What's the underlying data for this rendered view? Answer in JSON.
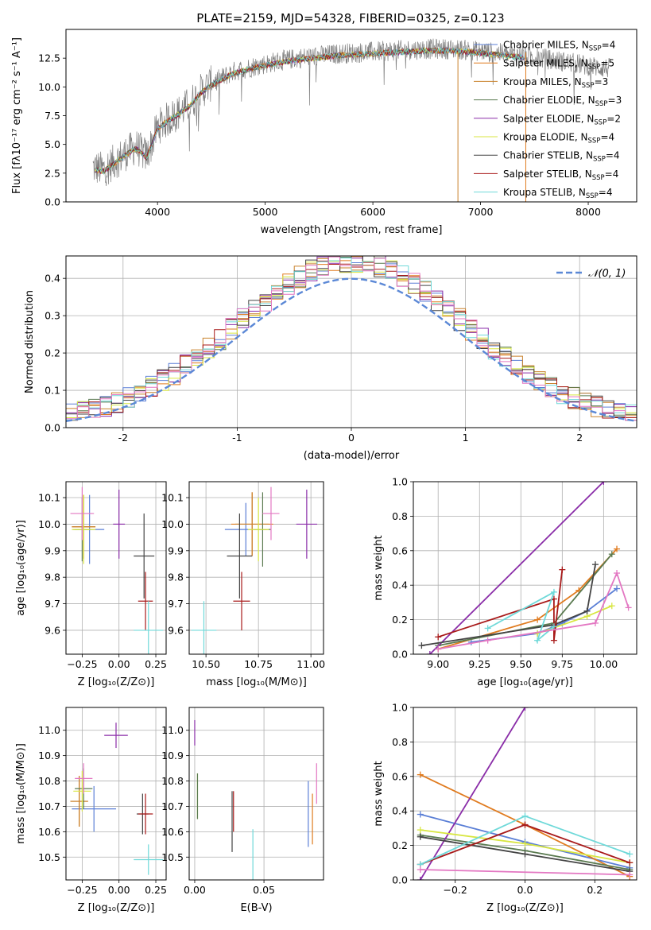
{
  "figure": {
    "title": "PLATE=2159, MJD=54328, FIBERID=0325, z=0.123"
  },
  "colors": {
    "Chabrier MILES": "#5b7fd6",
    "Salpeter MILES": "#e07b1f",
    "Kroupa MILES": "#c9822d",
    "Chabrier ELODIE": "#5a7a50",
    "Salpeter ELODIE": "#8a2da8",
    "Kroupa ELODIE": "#d8e640",
    "Chabrier STELIB": "#444444",
    "Salpeter STELIB": "#a81a1a",
    "Kroupa STELIB": "#6fd9d9",
    "spectrum": "#808080",
    "gaussian": "#5b88d6",
    "pink": "#e377c2"
  },
  "chart_data": [
    {
      "id": "spectrum",
      "type": "line",
      "title": "PLATE=2159, MJD=54328, FIBERID=0325, z=0.123",
      "xlabel": "wavelength [Angstrom, rest frame]",
      "ylabel": "Flux [fλ10⁻¹⁷ erg cm⁻² s⁻¹ A⁻¹]",
      "xlim": [
        3150,
        8450
      ],
      "ylim": [
        0,
        15
      ],
      "xticks": [
        4000,
        5000,
        6000,
        7000,
        8000
      ],
      "yticks": [
        0.0,
        2.5,
        5.0,
        7.5,
        10.0,
        12.5
      ],
      "legend_position": "top-right",
      "legend": [
        {
          "label": "Chabrier MILES, N",
          "sub": "SSP",
          "suffix": "=4",
          "color": "#5b7fd6"
        },
        {
          "label": "Salpeter MILES, N",
          "sub": "SSP",
          "suffix": "=5",
          "color": "#e07b1f"
        },
        {
          "label": "Kroupa MILES, N",
          "sub": "SSP",
          "suffix": "=3",
          "color": "#c9822d"
        },
        {
          "label": "Chabrier ELODIE, N",
          "sub": "SSP",
          "suffix": "=3",
          "color": "#5a7a50"
        },
        {
          "label": "Salpeter ELODIE, N",
          "sub": "SSP",
          "suffix": "=2",
          "color": "#8a2da8"
        },
        {
          "label": "Kroupa ELODIE, N",
          "sub": "SSP",
          "suffix": "=4",
          "color": "#d8e640"
        },
        {
          "label": "Chabrier STELIB, N",
          "sub": "SSP",
          "suffix": "=4",
          "color": "#444444"
        },
        {
          "label": "Salpeter STELIB, N",
          "sub": "SSP",
          "suffix": "=4",
          "color": "#a81a1a"
        },
        {
          "label": "Kroupa STELIB, N",
          "sub": "SSP",
          "suffix": "=4",
          "color": "#6fd9d9"
        }
      ],
      "spectrum_envelope": {
        "x": [
          3400,
          3500,
          3600,
          3700,
          3800,
          3900,
          3950,
          4000,
          4100,
          4200,
          4300,
          4400,
          4500,
          4700,
          4900,
          5100,
          5300,
          5500,
          5700,
          5900,
          6100,
          6300,
          6500,
          6700,
          6900,
          7100,
          7300,
          7500,
          7700,
          7900,
          8100,
          8200
        ],
        "y": [
          3.0,
          2.8,
          3.5,
          4.2,
          4.8,
          4.0,
          5.2,
          6.5,
          7.2,
          7.8,
          8.5,
          9.6,
          10.3,
          11.3,
          11.8,
          12.2,
          12.5,
          12.7,
          12.9,
          13.0,
          13.1,
          13.2,
          13.3,
          13.3,
          13.2,
          13.0,
          12.8,
          12.6,
          12.3,
          12.0,
          11.7,
          11.6
        ]
      }
    },
    {
      "id": "residual-hist",
      "type": "bar",
      "xlabel": "(data-model)/error",
      "ylabel": "Normed distribution",
      "xlim": [
        -2.5,
        2.5
      ],
      "ylim": [
        0,
        0.46
      ],
      "xticks": [
        -2,
        -1,
        0,
        1,
        2
      ],
      "yticks": [
        0.0,
        0.1,
        0.2,
        0.3,
        0.4
      ],
      "grid": true,
      "legend_position": "top-right",
      "gaussian_label": "𝒩(0, 1)",
      "bin_width": 0.1,
      "bin_start": -2.5
    },
    {
      "id": "age-Z",
      "type": "scatter",
      "xlabel": "Z [log₁₀(Z/Z⊙)]",
      "ylabel": "age  [log₁₀(age/yr)]",
      "xlim": [
        -0.36,
        0.32
      ],
      "ylim": [
        9.51,
        10.16
      ],
      "xticks": [
        -0.25,
        0.0,
        0.25
      ],
      "xticklabels": [
        "−0.25",
        "0.00",
        "0.25"
      ],
      "yticks": [
        9.6,
        9.7,
        9.8,
        9.9,
        10.0,
        10.1
      ],
      "grid": true,
      "points": [
        {
          "x": -0.2,
          "xerr": 0.1,
          "y": 9.98,
          "yerr": 0.13,
          "color": "#5b7fd6"
        },
        {
          "x": -0.24,
          "xerr": 0.08,
          "y": 9.99,
          "yerr": 0.12,
          "color": "#e07b1f"
        },
        {
          "x": -0.24,
          "xerr": 0.08,
          "y": 9.99,
          "yerr": 0.12,
          "color": "#c9822d"
        },
        {
          "x": -0.25,
          "xerr": 0.06,
          "y": 9.98,
          "yerr": 0.12,
          "color": "#5a7a50"
        },
        {
          "x": 0.0,
          "xerr": 0.04,
          "y": 10.0,
          "yerr": 0.13,
          "color": "#8a2da8"
        },
        {
          "x": -0.24,
          "xerr": 0.08,
          "y": 9.98,
          "yerr": 0.13,
          "color": "#d8e640"
        },
        {
          "x": 0.17,
          "xerr": 0.07,
          "y": 9.88,
          "yerr": 0.16,
          "color": "#444444"
        },
        {
          "x": 0.18,
          "xerr": 0.05,
          "y": 9.71,
          "yerr": 0.11,
          "color": "#a81a1a"
        },
        {
          "x": 0.2,
          "xerr": 0.1,
          "y": 9.6,
          "yerr": 0.11,
          "color": "#6fd9d9"
        },
        {
          "x": -0.25,
          "xerr": 0.08,
          "y": 10.04,
          "yerr": 0.1,
          "color": "#e377c2"
        }
      ]
    },
    {
      "id": "age-mass",
      "type": "scatter",
      "xlabel": "mass [log₁₀(M/M⊙)]",
      "ylabel": "",
      "xlim": [
        10.42,
        11.06
      ],
      "ylim": [
        9.51,
        10.16
      ],
      "xticks": [
        10.5,
        10.75,
        11.0
      ],
      "xticklabels": [
        "10.50",
        "10.75",
        "11.00"
      ],
      "yticks": [
        9.6,
        9.7,
        9.8,
        9.9,
        10.0,
        10.1
      ],
      "grid": true,
      "points": [
        {
          "x": 10.69,
          "xerr": 0.1,
          "y": 9.98,
          "yerr": 0.1,
          "color": "#5b7fd6"
        },
        {
          "x": 10.72,
          "xerr": 0.1,
          "y": 10.0,
          "yerr": 0.12,
          "color": "#e07b1f"
        },
        {
          "x": 10.72,
          "xerr": 0.08,
          "y": 10.0,
          "yerr": 0.12,
          "color": "#c9822d"
        },
        {
          "x": 10.77,
          "xerr": 0.04,
          "y": 9.98,
          "yerr": 0.14,
          "color": "#5a7a50"
        },
        {
          "x": 10.98,
          "xerr": 0.05,
          "y": 10.0,
          "yerr": 0.13,
          "color": "#8a2da8"
        },
        {
          "x": 10.75,
          "xerr": 0.05,
          "y": 9.98,
          "yerr": 0.12,
          "color": "#d8e640"
        },
        {
          "x": 10.66,
          "xerr": 0.06,
          "y": 9.88,
          "yerr": 0.16,
          "color": "#444444"
        },
        {
          "x": 10.67,
          "xerr": 0.04,
          "y": 9.71,
          "yerr": 0.11,
          "color": "#a81a1a"
        },
        {
          "x": 10.49,
          "xerr": 0.06,
          "y": 9.6,
          "yerr": 0.11,
          "color": "#6fd9d9"
        },
        {
          "x": 10.81,
          "xerr": 0.04,
          "y": 10.04,
          "yerr": 0.1,
          "color": "#e377c2"
        }
      ]
    },
    {
      "id": "massweight-age",
      "type": "line",
      "xlabel": "age  [log₁₀(age/yr)]",
      "ylabel": "mass weight",
      "xlim": [
        8.85,
        10.2
      ],
      "ylim": [
        0,
        1
      ],
      "xticks": [
        9.0,
        9.25,
        9.5,
        9.75,
        10.0
      ],
      "xticklabels": [
        "9.00",
        "9.25",
        "9.50",
        "9.75",
        "10.00"
      ],
      "yticks": [
        0.0,
        0.2,
        0.4,
        0.6,
        0.8,
        1.0
      ],
      "grid": true,
      "series": [
        {
          "color": "#5b7fd6",
          "x": [
            9.2,
            9.6,
            9.75,
            9.9,
            10.08
          ],
          "y": [
            0.07,
            0.12,
            0.18,
            0.25,
            0.38
          ]
        },
        {
          "color": "#e07b1f",
          "x": [
            9.0,
            9.6,
            9.85,
            10.08
          ],
          "y": [
            0.03,
            0.2,
            0.37,
            0.61
          ]
        },
        {
          "color": "#5a7a50",
          "x": [
            9.0,
            9.7,
            10.05
          ],
          "y": [
            0.05,
            0.18,
            0.58
          ]
        },
        {
          "color": "#8a2da8",
          "x": [
            8.95,
            10.0
          ],
          "y": [
            0.0,
            1.0
          ]
        },
        {
          "color": "#d8e640",
          "x": [
            9.6,
            9.9,
            10.05
          ],
          "y": [
            0.12,
            0.22,
            0.28
          ]
        },
        {
          "color": "#444444",
          "x": [
            8.9,
            9.7,
            9.9,
            9.95
          ],
          "y": [
            0.05,
            0.17,
            0.25,
            0.52
          ]
        },
        {
          "color": "#a81a1a",
          "x": [
            9.0,
            9.7,
            9.7,
            9.75
          ],
          "y": [
            0.1,
            0.32,
            0.08,
            0.49
          ]
        },
        {
          "color": "#6fd9d9",
          "x": [
            9.3,
            9.7,
            9.6,
            9.7
          ],
          "y": [
            0.15,
            0.36,
            0.08,
            0.16
          ]
        },
        {
          "color": "#e377c2",
          "x": [
            9.0,
            9.3,
            9.95,
            10.08,
            10.15
          ],
          "y": [
            0.03,
            0.08,
            0.18,
            0.47,
            0.27
          ]
        }
      ]
    },
    {
      "id": "mass-Z",
      "type": "scatter",
      "xlabel": "Z [log₁₀(Z/Z⊙)]",
      "ylabel": "mass [log₁₀(M/M⊙)]",
      "xlim": [
        -0.36,
        0.32
      ],
      "ylim": [
        10.41,
        11.09
      ],
      "xticks": [
        -0.25,
        0.0,
        0.25
      ],
      "xticklabels": [
        "−0.25",
        "0.00",
        "0.25"
      ],
      "yticks": [
        10.5,
        10.6,
        10.7,
        10.8,
        10.9,
        11.0
      ],
      "grid": true,
      "points": [
        {
          "x": -0.17,
          "xerr": 0.15,
          "y": 10.69,
          "yerr": 0.09,
          "color": "#5b7fd6"
        },
        {
          "x": -0.27,
          "xerr": 0.06,
          "y": 10.72,
          "yerr": 0.1,
          "color": "#e07b1f"
        },
        {
          "x": -0.27,
          "xerr": 0.06,
          "y": 10.72,
          "yerr": 0.1,
          "color": "#c9822d"
        },
        {
          "x": -0.24,
          "xerr": 0.06,
          "y": 10.77,
          "yerr": 0.08,
          "color": "#5a7a50"
        },
        {
          "x": -0.02,
          "xerr": 0.08,
          "y": 10.98,
          "yerr": 0.05,
          "color": "#8a2da8"
        },
        {
          "x": -0.25,
          "xerr": 0.06,
          "y": 10.76,
          "yerr": 0.08,
          "color": "#d8e640"
        },
        {
          "x": 0.16,
          "xerr": 0.04,
          "y": 10.67,
          "yerr": 0.08,
          "color": "#444444"
        },
        {
          "x": 0.18,
          "xerr": 0.05,
          "y": 10.67,
          "yerr": 0.08,
          "color": "#a81a1a"
        },
        {
          "x": 0.2,
          "xerr": 0.1,
          "y": 10.49,
          "yerr": 0.06,
          "color": "#6fd9d9"
        },
        {
          "x": -0.24,
          "xerr": 0.06,
          "y": 10.81,
          "yerr": 0.06,
          "color": "#e377c2"
        }
      ]
    },
    {
      "id": "mass-EBV",
      "type": "scatter",
      "xlabel": "E(B-V)",
      "ylabel": "",
      "xlim": [
        -0.004,
        0.093
      ],
      "ylim": [
        10.41,
        11.09
      ],
      "xticks": [
        0.0,
        0.05
      ],
      "xticklabels": [
        "0.00",
        "0.05"
      ],
      "yticks": [
        10.5,
        10.6,
        10.7,
        10.8,
        10.9,
        11.0
      ],
      "grid": true,
      "points": [
        {
          "x": 0.0,
          "xerr": 0.0,
          "y": 10.99,
          "yerr": 0.05,
          "color": "#8a2da8"
        },
        {
          "x": 0.002,
          "xerr": 0.0,
          "y": 10.74,
          "yerr": 0.09,
          "color": "#d8e640"
        },
        {
          "x": 0.002,
          "xerr": 0.0,
          "y": 10.74,
          "yerr": 0.09,
          "color": "#5a7a50"
        },
        {
          "x": 0.027,
          "xerr": 0.0,
          "y": 10.64,
          "yerr": 0.12,
          "color": "#444444"
        },
        {
          "x": 0.028,
          "xerr": 0.0,
          "y": 10.68,
          "yerr": 0.08,
          "color": "#a81a1a"
        },
        {
          "x": 0.042,
          "xerr": 0.0,
          "y": 10.49,
          "yerr": 0.12,
          "color": "#6fd9d9"
        },
        {
          "x": 0.082,
          "xerr": 0.0,
          "y": 10.67,
          "yerr": 0.13,
          "color": "#5b7fd6"
        },
        {
          "x": 0.085,
          "xerr": 0.0,
          "y": 10.65,
          "yerr": 0.1,
          "color": "#e07b1f"
        },
        {
          "x": 0.088,
          "xerr": 0.0,
          "y": 10.79,
          "yerr": 0.08,
          "color": "#e377c2"
        }
      ]
    },
    {
      "id": "massweight-Z",
      "type": "line",
      "xlabel": "Z [log₁₀(Z/Z⊙)]",
      "ylabel": "mass weight",
      "xlim": [
        -0.32,
        0.32
      ],
      "ylim": [
        0,
        1
      ],
      "xticks": [
        -0.2,
        0.0,
        0.2
      ],
      "xticklabels": [
        "−0.2",
        "0.0",
        "0.2"
      ],
      "yticks": [
        0.0,
        0.2,
        0.4,
        0.6,
        0.8,
        1.0
      ],
      "grid": true,
      "series": [
        {
          "color": "#5b7fd6",
          "x": [
            -0.3,
            0.0,
            0.3
          ],
          "y": [
            0.38,
            0.22,
            0.07
          ]
        },
        {
          "color": "#e07b1f",
          "x": [
            -0.3,
            0.0,
            0.3
          ],
          "y": [
            0.61,
            0.32,
            0.02
          ]
        },
        {
          "color": "#5a7a50",
          "x": [
            -0.3,
            0.0,
            0.3
          ],
          "y": [
            0.26,
            0.17,
            0.06
          ]
        },
        {
          "color": "#8a2da8",
          "x": [
            -0.3,
            0.0
          ],
          "y": [
            0.0,
            1.0
          ]
        },
        {
          "color": "#d8e640",
          "x": [
            -0.3,
            0.0,
            0.3
          ],
          "y": [
            0.29,
            0.21,
            0.1
          ]
        },
        {
          "color": "#444444",
          "x": [
            -0.3,
            0.0,
            0.3
          ],
          "y": [
            0.25,
            0.15,
            0.05
          ]
        },
        {
          "color": "#a81a1a",
          "x": [
            -0.3,
            0.0,
            0.3
          ],
          "y": [
            0.09,
            0.32,
            0.1
          ]
        },
        {
          "color": "#6fd9d9",
          "x": [
            -0.3,
            0.0,
            0.3
          ],
          "y": [
            0.09,
            0.37,
            0.15
          ]
        },
        {
          "color": "#e377c2",
          "x": [
            -0.3,
            0.3
          ],
          "y": [
            0.06,
            0.03
          ]
        }
      ]
    }
  ]
}
